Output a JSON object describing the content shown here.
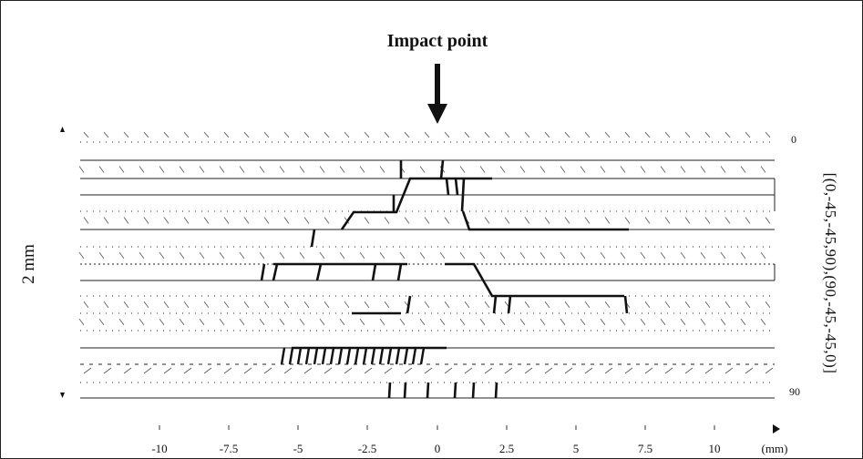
{
  "title": "Impact point",
  "left_label": "2 mm",
  "right_label": "[(0,-45,-45,90),(90,-45,-45,0)]",
  "depth_top_label": "0",
  "depth_bottom_label": "90",
  "x_unit_label": "(mm)",
  "x_ticks": [
    "-10",
    "-7.5",
    "-5",
    "-2.5",
    "0",
    "2.5",
    "5",
    "7.5",
    "10"
  ]
}
